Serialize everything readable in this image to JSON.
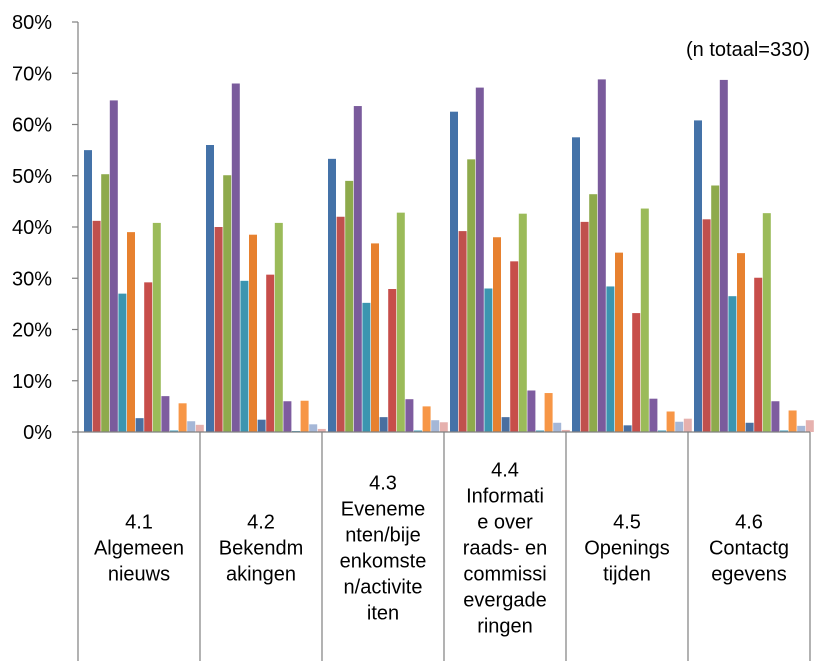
{
  "chart_data": {
    "type": "bar",
    "title": "",
    "xlabel": "",
    "ylabel": "",
    "note": "(n totaal=330)",
    "ylim": [
      0,
      80
    ],
    "y_ticks": [
      "0%",
      "10%",
      "20%",
      "30%",
      "40%",
      "50%",
      "60%",
      "70%",
      "80%"
    ],
    "grid": false,
    "categories": [
      {
        "label": "4.1 Algemeen nieuws",
        "lines": [
          "4.1",
          "Algemeen",
          "nieuws"
        ]
      },
      {
        "label": "4.2 Bekendmakingen",
        "lines": [
          "4.2",
          "Bekendm",
          "akingen"
        ]
      },
      {
        "label": "4.3 Evenementen/bijeenkomsten/activiteiten",
        "lines": [
          "4.3",
          "Eveneme",
          "nten/bije",
          "enkomste",
          "n/activite",
          "iten"
        ]
      },
      {
        "label": "4.4 Informatie over raads- en commissievergaderingen",
        "lines": [
          "4.4",
          "Informati",
          "e over",
          "raads- en",
          "commissi",
          "evergade",
          "ringen"
        ]
      },
      {
        "label": "4.5 Openingstijden",
        "lines": [
          "4.5",
          "Openings",
          "tijden"
        ]
      },
      {
        "label": "4.6 Contactgegevens",
        "lines": [
          "4.6",
          "Contactg",
          "egevens"
        ]
      }
    ],
    "series": [
      {
        "color": "#4472A8",
        "values": [
          55.0,
          56.0,
          53.3,
          62.5,
          57.5,
          60.8
        ]
      },
      {
        "color": "#C0504D",
        "values": [
          41.2,
          40.0,
          42.0,
          39.2,
          41.0,
          41.5
        ]
      },
      {
        "color": "#8EAA4C",
        "values": [
          50.3,
          50.1,
          49.0,
          53.2,
          46.4,
          48.1
        ]
      },
      {
        "color": "#7A5B9C",
        "values": [
          64.7,
          68.0,
          63.6,
          67.2,
          68.8,
          68.7
        ]
      },
      {
        "color": "#3B95B0",
        "values": [
          27.0,
          29.5,
          25.2,
          28.0,
          28.4,
          26.5
        ]
      },
      {
        "color": "#E7812F",
        "values": [
          39.0,
          38.5,
          36.8,
          38.0,
          35.0,
          34.9
        ]
      },
      {
        "color": "#4A6FA0",
        "values": [
          2.7,
          2.4,
          2.9,
          2.9,
          1.3,
          1.8
        ]
      },
      {
        "color": "#C74E4A",
        "values": [
          29.2,
          30.7,
          27.9,
          33.3,
          23.2,
          30.1
        ]
      },
      {
        "color": "#9BBB59",
        "values": [
          40.8,
          40.8,
          42.8,
          42.6,
          43.6,
          42.7
        ]
      },
      {
        "color": "#7E5C9F",
        "values": [
          7.0,
          6.0,
          6.4,
          8.1,
          6.5,
          6.0
        ]
      },
      {
        "color": "#4BA3C3",
        "values": [
          0.3,
          0.2,
          0.3,
          0.3,
          0.3,
          0.3
        ]
      },
      {
        "color": "#F79646",
        "values": [
          5.6,
          6.1,
          5.0,
          7.6,
          4.0,
          4.2
        ]
      },
      {
        "color": "#A5B7D7",
        "values": [
          2.1,
          1.5,
          2.3,
          1.8,
          2.0,
          1.2
        ]
      },
      {
        "color": "#E6B1AE",
        "values": [
          1.4,
          0.6,
          1.9,
          0.4,
          2.6,
          2.3
        ]
      }
    ]
  }
}
